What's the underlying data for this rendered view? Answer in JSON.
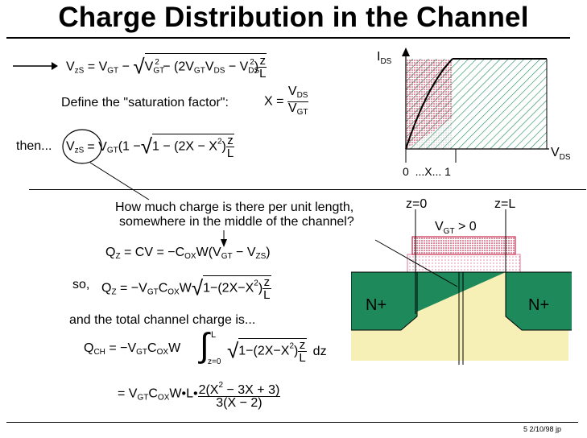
{
  "title": "Charge Distribution in the Channel",
  "eq1": {
    "lhs": "V",
    "lhs_sub": "zS",
    "eq": " = V",
    "gt_sub": "GT",
    "minus": " − ",
    "rad_v": "V",
    "rad_gt": "GT",
    "rad_sq": "2",
    "rad_mid": " − (2V",
    "rad_gt2": "GT",
    "rad_v2": "V",
    "rad_ds": "DS",
    "rad_minus": " − V",
    "rad_ds2": "DS",
    "rad_sq2": "2",
    "rad_close": ")",
    "z": "z",
    "L": "L"
  },
  "define": {
    "label": "Define the \"saturation factor\":",
    "x": "X = ",
    "num": "V",
    "num_sub": "DS",
    "den": "V",
    "den_sub": "GT"
  },
  "eq2": {
    "then": "then...",
    "lhs": "V",
    "lhs_sub": "zS",
    "eq": "= V",
    "gt_sub": "GT",
    "open": "(1 −",
    "rad": "1 − (2X − X",
    "sq": "2",
    "close": ")",
    "z": "z",
    "L": "L"
  },
  "question": {
    "line1": "How much charge is there per unit length,",
    "line2": "somewhere in the middle of the channel?"
  },
  "qz1": {
    "q": "Q",
    "q_sub": "Z",
    "body": " = CV = −C",
    "ox": "OX",
    "w": "W(V",
    "gt": "GT",
    "minus": " − V",
    "zs": "ZS",
    "close": ")"
  },
  "qz2": {
    "so": "so,",
    "q": "Q",
    "q_sub": "Z",
    "body": " = −V",
    "gt": "GT",
    "c": "C",
    "ox": "OX",
    "w": "W",
    "rad": "1−(2X−X",
    "sq": "2",
    "close": ")",
    "z": "z",
    "L": "L"
  },
  "total_label": "and the total channel charge is...",
  "qch": {
    "q": "Q",
    "q_sub": "CH",
    "body": " = −V",
    "gt": "GT",
    "c": "C",
    "ox": "OX",
    "w": "W",
    "int_top": "L",
    "int_bot": "z=0",
    "rad": "1−(2X−X",
    "sq": "2",
    "close": ")",
    "z": "z",
    "L": "L",
    "dz": "dz"
  },
  "result": {
    "eq": "= V",
    "gt": "GT",
    "c": "C",
    "ox": "OX",
    "wl": "W•L•",
    "num": "2(X",
    "num_sq": "2",
    "num_rest": " − 3X + 3)",
    "den": "3(X − 2)"
  },
  "graph": {
    "y_label": "I",
    "y_sub": "DS",
    "x_label": "V",
    "x_sub": "DS",
    "x_ticks": "0  ...X... 1"
  },
  "device": {
    "z0": "z=0",
    "zL": "z=L",
    "vgt": "V",
    "vgt_sub": "GT",
    "vgt_rest": " > 0",
    "source": "N+",
    "drain": "N+"
  },
  "footer": "5  2/10/98  jp",
  "colors": {
    "green": "#1e8a5c",
    "green_dark": "#0f6b48",
    "yellow": "#f6f0b6",
    "red": "#c0002a",
    "pink": "#e6a9bd"
  }
}
